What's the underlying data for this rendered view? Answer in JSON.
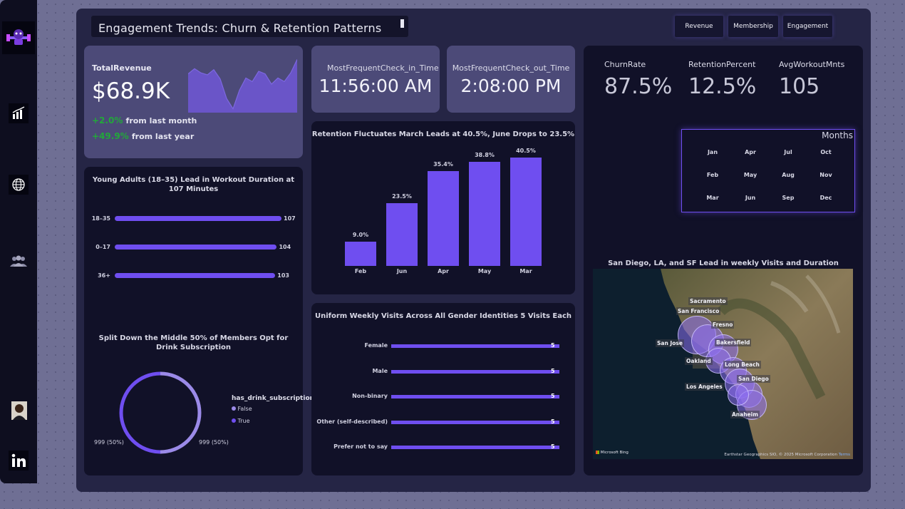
{
  "header": {
    "title": "Engagement Trends: Churn & Retention Patterns"
  },
  "nav": {
    "revenue": "Revenue",
    "membership": "Membership",
    "engagement": "Engagement"
  },
  "revenue_card": {
    "label": "TotalRevenue",
    "value": "$68.9K",
    "month_change": "+2.0%",
    "month_text": "from last month",
    "year_change": "+49.9%",
    "year_text": "from last year",
    "accent": "#22a83a"
  },
  "checkin": {
    "label": "MostFrequentCheck_in_Time",
    "value": "11:56:00 AM"
  },
  "checkout": {
    "label": "MostFrequentCheck_out_Time",
    "value": "2:08:00 PM"
  },
  "kpis": {
    "churn": {
      "label": "ChurnRate",
      "value": "87.5%"
    },
    "retention": {
      "label": "RetentionPercent",
      "value": "12.5%"
    },
    "workout": {
      "label": "AvgWorkoutMnts",
      "value": "105"
    }
  },
  "months_slicer": {
    "title": "Months",
    "months": [
      "Jan",
      "Apr",
      "Jul",
      "Oct",
      "Feb",
      "May",
      "Aug",
      "Nov",
      "Mar",
      "Jun",
      "Sep",
      "Dec"
    ]
  },
  "map": {
    "title": "San Diego, LA, and SF Lead in weekly Visits and Duration",
    "cities": [
      "Sacramento",
      "San Francisco",
      "Fresno",
      "San Jose",
      "Bakersfield",
      "Oakland",
      "Long Beach",
      "San Diego",
      "Los Angeles",
      "Anaheim"
    ],
    "logo": "Microsoft Bing",
    "attribution": "Earthstar Geographics SIO, © 2025 Microsoft Corporation",
    "terms": "Terms"
  },
  "colors": {
    "accent": "#6f4ef0",
    "accent_light": "#9b8ae8",
    "panel": "#111128"
  },
  "chart_data": [
    {
      "id": "age",
      "type": "bar",
      "orientation": "horizontal",
      "title": "Young Adults (18–35) Lead in Workout Duration at 107 Minutes",
      "categories": [
        "18–35",
        "0–17",
        "36+"
      ],
      "values": [
        107,
        104,
        103
      ]
    },
    {
      "id": "drink",
      "type": "pie",
      "title": "Split Down the Middle 50% of Members Opt for Drink Subscription",
      "legend_title": "has_drink_subscription",
      "categories": [
        "False",
        "True"
      ],
      "values": [
        999,
        999
      ],
      "data_labels": [
        "999 (50%)",
        "999 (50%)"
      ],
      "colors": [
        "#9b8ae8",
        "#6f4ef0"
      ]
    },
    {
      "id": "retention",
      "type": "bar",
      "title": "Retention Fluctuates March Leads at 40.5%, June Drops to 23.5%",
      "categories": [
        "Feb",
        "Jun",
        "Apr",
        "May",
        "Mar"
      ],
      "values": [
        9.0,
        23.5,
        35.4,
        38.8,
        40.5
      ],
      "data_labels": [
        "9.0%",
        "23.5%",
        "35.4%",
        "38.8%",
        "40.5%"
      ]
    },
    {
      "id": "gender",
      "type": "bar",
      "orientation": "horizontal",
      "title": "Uniform Weekly Visits Across All Gender Identities 5 Visits Each",
      "categories": [
        "Female",
        "Male",
        "Non-binary",
        "Other (self-described)",
        "Prefer not to say"
      ],
      "values": [
        5,
        5,
        5,
        5,
        5
      ]
    },
    {
      "id": "spark",
      "type": "area",
      "values": [
        0.7,
        0.8,
        0.72,
        0.68,
        0.78,
        0.6,
        0.22,
        0.02,
        0.38,
        0.62,
        0.55,
        0.75,
        0.7,
        0.5,
        0.62,
        0.55,
        0.72,
        0.98
      ]
    }
  ]
}
